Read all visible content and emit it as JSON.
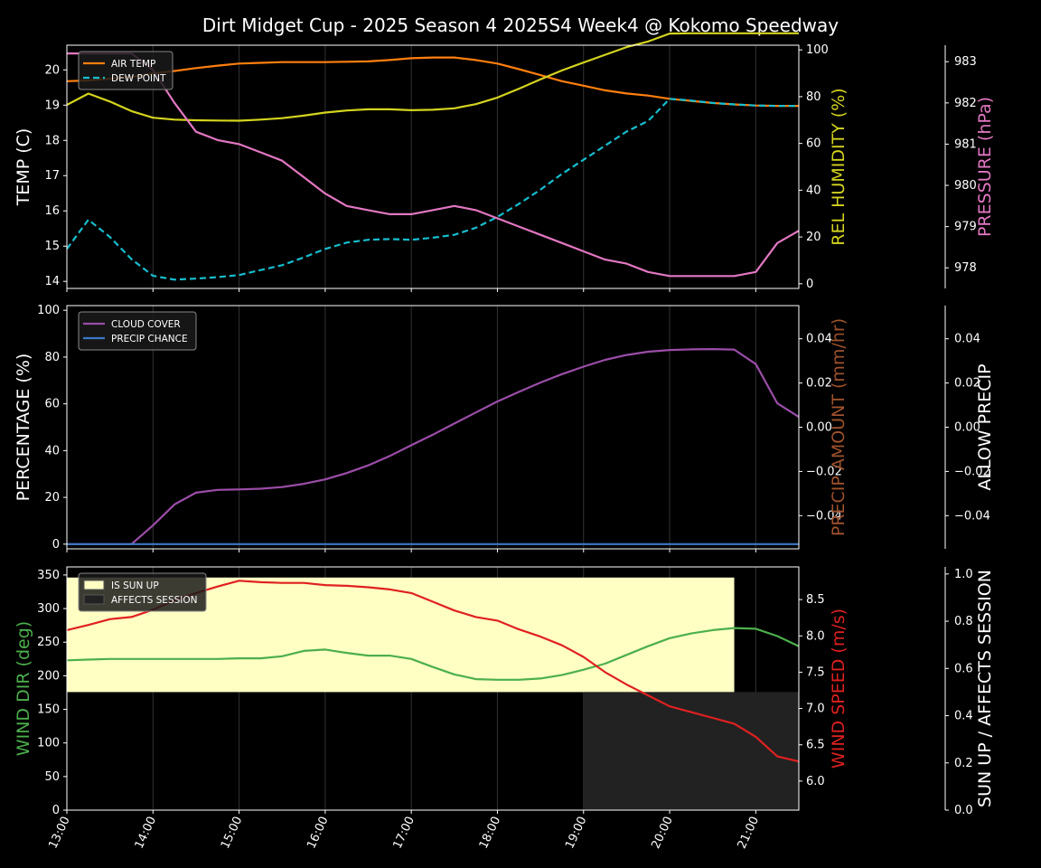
{
  "title": "Dirt Midget Cup - 2025 Season 4 2025S4 Week4 @ Kokomo Speedway",
  "colors": {
    "background": "#000000",
    "axis": "#ffffff",
    "grid": "#333333",
    "air_temp": "#ff7f0e",
    "dew_point": "#17becf",
    "humidity": "#d4d41f",
    "pressure": "#e377c2",
    "cloud": "#9b4da8",
    "precip": "#3b78c4",
    "wind_dir": "#4caf4c",
    "wind_speed": "#e02020",
    "sun_up": "#ffffc4",
    "affects": "#222222",
    "precip_amount_label": "#a0522d"
  },
  "x_ticks": [
    "13:00",
    "14:00",
    "15:00",
    "16:00",
    "17:00",
    "18:00",
    "19:00",
    "20:00",
    "21:00"
  ],
  "chart_data": [
    {
      "type": "line",
      "panel": "weather",
      "x_range": [
        13.0,
        21.5
      ],
      "grid": "vertical",
      "axes": {
        "left": {
          "label": "TEMP (C)",
          "ylim": [
            13.8,
            20.7
          ],
          "ticks": [
            14,
            15,
            16,
            17,
            18,
            19,
            20
          ]
        },
        "right": {
          "label": "REL HUMIDITY (%)",
          "ylim": [
            -2,
            102
          ],
          "ticks": [
            0,
            20,
            40,
            60,
            80,
            100
          ]
        },
        "right2": {
          "label": "PRESSURE (hPa)",
          "ylim": [
            977.5,
            983.4
          ],
          "ticks": [
            978,
            979,
            980,
            981,
            982,
            983
          ]
        }
      },
      "legend": {
        "position": "top-left",
        "entries": [
          {
            "label": "AIR TEMP",
            "color_key": "air_temp",
            "dash": false
          },
          {
            "label": "DEW POINT",
            "color_key": "dew_point",
            "dash": true
          }
        ]
      },
      "series": [
        {
          "name": "AIR TEMP",
          "axis": "left",
          "color_key": "air_temp",
          "dash": false,
          "x": [
            13,
            13.25,
            13.5,
            13.75,
            14,
            14.25,
            14.5,
            14.75,
            15,
            15.25,
            15.5,
            15.75,
            16,
            16.25,
            16.5,
            16.75,
            17,
            17.25,
            17.5,
            17.75,
            18,
            18.25,
            18.5,
            18.75,
            19,
            19.25,
            19.5,
            19.75,
            20,
            20.25,
            20.5,
            20.75,
            21,
            21.25,
            21.5
          ],
          "y": [
            19.68,
            19.7,
            19.75,
            19.8,
            19.9,
            19.97,
            20.05,
            20.12,
            20.18,
            20.2,
            20.22,
            20.22,
            20.22,
            20.23,
            20.24,
            20.28,
            20.33,
            20.35,
            20.35,
            20.28,
            20.18,
            20.02,
            19.85,
            19.68,
            19.55,
            19.42,
            19.33,
            19.27,
            19.18,
            19.12,
            19.06,
            19.02,
            18.99,
            18.98,
            18.98
          ]
        },
        {
          "name": "DEW POINT",
          "axis": "left",
          "color_key": "dew_point",
          "dash": true,
          "x": [
            13,
            13.25,
            13.5,
            13.75,
            14,
            14.25,
            14.5,
            14.75,
            15,
            15.25,
            15.5,
            15.75,
            16,
            16.25,
            16.5,
            16.75,
            17,
            17.25,
            17.5,
            17.75,
            18,
            18.25,
            18.5,
            18.75,
            19,
            19.25,
            19.5,
            19.75,
            20,
            20.25,
            20.5,
            20.75,
            21,
            21.25,
            21.5
          ],
          "y": [
            14.92,
            15.75,
            15.26,
            14.63,
            14.16,
            14.05,
            14.08,
            14.12,
            14.18,
            14.32,
            14.46,
            14.68,
            14.92,
            15.1,
            15.18,
            15.2,
            15.18,
            15.24,
            15.32,
            15.52,
            15.83,
            16.2,
            16.6,
            17.05,
            17.45,
            17.85,
            18.25,
            18.55,
            19.18,
            19.13,
            19.06,
            19.02,
            18.99,
            18.98,
            18.98
          ]
        },
        {
          "name": "REL HUMIDITY",
          "axis": "right",
          "color_key": "humidity",
          "dash": false,
          "x": [
            13,
            13.25,
            13.5,
            13.75,
            14,
            14.25,
            14.5,
            14.75,
            15,
            15.25,
            15.5,
            15.75,
            16,
            16.25,
            16.5,
            16.75,
            17,
            17.25,
            17.5,
            17.75,
            18,
            18.25,
            18.5,
            18.75,
            19,
            19.25,
            19.5,
            19.75,
            20,
            20.25,
            20.5,
            20.75,
            21,
            21.25,
            21.5
          ],
          "y": [
            76.5,
            81.3,
            77.9,
            73.8,
            71.0,
            70.2,
            69.9,
            69.8,
            69.7,
            70.2,
            70.8,
            71.9,
            73.2,
            74.1,
            74.6,
            74.6,
            74.2,
            74.4,
            75.0,
            76.8,
            79.6,
            83.4,
            87.4,
            91.2,
            94.6,
            97.9,
            101.2,
            103.6,
            107.0,
            107.1,
            107.1,
            107.1,
            107.1,
            107.1,
            107.1
          ]
        },
        {
          "name": "PRESSURE",
          "axis": "right2",
          "color_key": "pressure",
          "dash": false,
          "x": [
            13,
            13.25,
            13.5,
            13.75,
            14,
            14.25,
            14.5,
            14.75,
            15,
            15.25,
            15.5,
            15.75,
            16,
            16.25,
            16.5,
            16.75,
            17,
            17.25,
            17.5,
            17.75,
            18,
            18.25,
            18.5,
            18.75,
            19,
            19.25,
            19.5,
            19.75,
            20,
            20.25,
            20.5,
            20.75,
            21,
            21.25,
            21.5
          ],
          "y": [
            983.2,
            983.2,
            983.2,
            983.2,
            982.8,
            982.0,
            981.3,
            981.1,
            981.0,
            980.8,
            980.6,
            980.2,
            979.8,
            979.5,
            979.4,
            979.3,
            979.3,
            979.4,
            979.5,
            979.4,
            979.2,
            979.0,
            978.8,
            978.6,
            978.4,
            978.2,
            978.1,
            977.9,
            977.8,
            977.8,
            977.8,
            977.8,
            977.9,
            978.6,
            978.9
          ]
        }
      ]
    },
    {
      "type": "line",
      "panel": "precip",
      "x_range": [
        13.0,
        21.5
      ],
      "grid": "vertical",
      "axes": {
        "left": {
          "label": "PERCENTAGE (%)",
          "ylim": [
            -2,
            102
          ],
          "ticks": [
            0,
            20,
            40,
            60,
            80,
            100
          ]
        },
        "right": {
          "label": "PRECIP AMOUNT (mm/hr)",
          "ylim": [
            -0.055,
            0.055
          ],
          "ticks": [
            "−0.04",
            "−0.02",
            "0.00",
            "0.02",
            "0.04"
          ]
        },
        "right2": {
          "label": "ALLOW PRECIP",
          "ylim": [
            -0.055,
            0.055
          ],
          "ticks": [
            "−0.04",
            "−0.02",
            "0.00",
            "0.02",
            "0.04"
          ]
        }
      },
      "legend": {
        "position": "top-left",
        "entries": [
          {
            "label": "CLOUD COVER",
            "color_key": "cloud",
            "dash": false
          },
          {
            "label": "PRECIP CHANCE",
            "color_key": "precip",
            "dash": false
          }
        ]
      },
      "series": [
        {
          "name": "CLOUD COVER",
          "axis": "left",
          "color_key": "cloud",
          "dash": false,
          "x": [
            13,
            13.25,
            13.5,
            13.75,
            14,
            14.25,
            14.5,
            14.75,
            15,
            15.25,
            15.5,
            15.75,
            16,
            16.25,
            16.5,
            16.75,
            17,
            17.25,
            17.5,
            17.75,
            18,
            18.25,
            18.5,
            18.75,
            19,
            19.25,
            19.5,
            19.75,
            20,
            20.25,
            20.5,
            20.75,
            21,
            21.25,
            21.5
          ],
          "y": [
            0,
            0,
            0,
            0,
            8,
            17,
            22,
            23.2,
            23.4,
            23.7,
            24.4,
            25.8,
            27.7,
            30.4,
            33.7,
            37.7,
            42.3,
            46.8,
            51.6,
            56.3,
            61.0,
            65.1,
            69.1,
            72.7,
            75.9,
            78.8,
            80.9,
            82.3,
            83.0,
            83.3,
            83.4,
            83.2,
            77.0,
            60.2,
            54.4
          ]
        },
        {
          "name": "PRECIP CHANCE",
          "axis": "left",
          "color_key": "precip",
          "dash": false,
          "x": [
            13,
            21.5
          ],
          "y": [
            0,
            0
          ]
        }
      ]
    },
    {
      "type": "line",
      "panel": "wind",
      "x_range": [
        13.0,
        21.5
      ],
      "grid": "vertical",
      "axes": {
        "left": {
          "label": "WIND DIR (deg)",
          "ylim": [
            0,
            362
          ],
          "ticks": [
            0,
            50,
            100,
            150,
            200,
            250,
            300,
            350
          ]
        },
        "right": {
          "label": "WIND SPEED (m/s)",
          "ylim": [
            5.6,
            8.95
          ],
          "ticks": [
            "6.0",
            "6.5",
            "7.0",
            "7.5",
            "8.0",
            "8.5"
          ]
        },
        "right2": {
          "label": "SUN UP / AFFECTS SESSION",
          "ylim": [
            0,
            1.03
          ],
          "ticks": [
            "0.0",
            "0.2",
            "0.4",
            "0.6",
            "0.8",
            "1.0"
          ]
        }
      },
      "legend": {
        "position": "top-left",
        "entries": [
          {
            "label": "IS SUN UP",
            "color_key": "sun_up",
            "box": true
          },
          {
            "label": "AFFECTS SESSION",
            "color_key": "affects",
            "box": true
          }
        ]
      },
      "bands": [
        {
          "name": "IS SUN UP",
          "color_key": "sun_up",
          "x0": 13.0,
          "x1": 20.75,
          "y0": 0.5,
          "y1": 0.985
        },
        {
          "name": "AFFECTS SESSION",
          "color_key": "affects",
          "x0": 19.0,
          "x1": 21.5,
          "y0": 0.0,
          "y1": 0.5
        }
      ],
      "series": [
        {
          "name": "WIND DIR",
          "axis": "left",
          "color_key": "wind_dir",
          "dash": false,
          "x": [
            13,
            13.25,
            13.5,
            13.75,
            14,
            14.25,
            14.5,
            14.75,
            15,
            15.25,
            15.5,
            15.75,
            16,
            16.25,
            16.5,
            16.75,
            17,
            17.25,
            17.5,
            17.75,
            18,
            18.25,
            18.5,
            18.75,
            19,
            19.25,
            19.5,
            19.75,
            20,
            20.25,
            20.5,
            20.75,
            21,
            21.25,
            21.5
          ],
          "y": [
            223,
            224,
            225,
            225,
            225,
            225,
            225,
            225,
            226,
            226,
            229,
            237,
            239,
            234,
            230,
            230,
            225,
            213,
            202,
            195,
            194,
            194,
            196,
            201,
            209,
            218,
            231,
            244,
            256,
            263,
            268,
            271,
            270,
            259,
            244
          ]
        },
        {
          "name": "WIND SPEED",
          "axis": "right",
          "color_key": "wind_speed",
          "dash": false,
          "x": [
            13,
            13.25,
            13.5,
            13.75,
            14,
            14.25,
            14.5,
            14.75,
            15,
            15.25,
            15.5,
            15.75,
            16,
            16.25,
            16.5,
            16.75,
            17,
            17.25,
            17.5,
            17.75,
            18,
            18.25,
            18.5,
            18.75,
            19,
            19.25,
            19.5,
            19.75,
            20,
            20.25,
            20.5,
            20.75,
            21,
            21.25,
            21.5
          ],
          "y": [
            8.08,
            8.15,
            8.23,
            8.26,
            8.36,
            8.49,
            8.59,
            8.68,
            8.76,
            8.74,
            8.73,
            8.73,
            8.7,
            8.69,
            8.67,
            8.64,
            8.59,
            8.47,
            8.35,
            8.26,
            8.21,
            8.09,
            7.99,
            7.87,
            7.71,
            7.5,
            7.33,
            7.18,
            7.03,
            6.95,
            6.87,
            6.79,
            6.61,
            6.34,
            6.27
          ]
        }
      ]
    }
  ]
}
